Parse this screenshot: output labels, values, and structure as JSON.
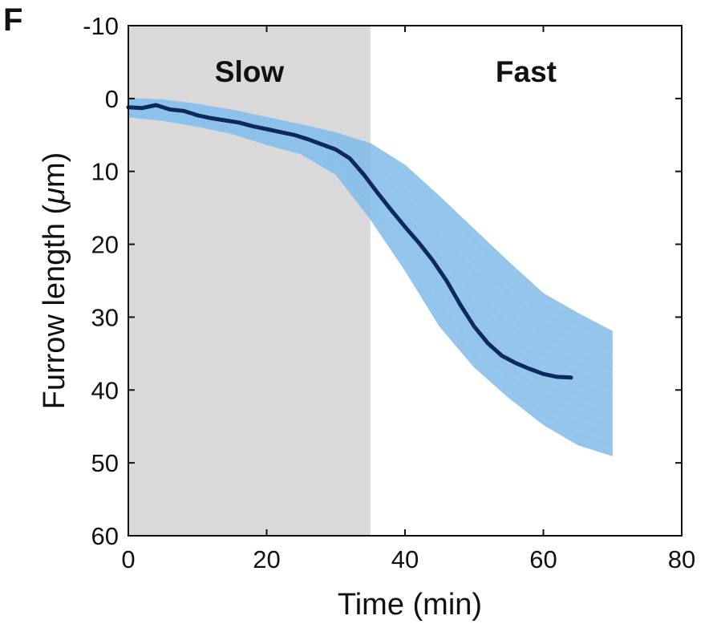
{
  "panel_letter": "F",
  "chart_data": {
    "type": "line",
    "title": "",
    "xlabel": "Time (min)",
    "ylabel_prefix": "Furrow length (",
    "ylabel_mu": "μ",
    "ylabel_suffix": "m)",
    "xlim": [
      0,
      80
    ],
    "ylim": [
      -10,
      60
    ],
    "y_inverted": true,
    "grid": false,
    "xticks": [
      0,
      20,
      40,
      60,
      80
    ],
    "xtick_labels": [
      "0",
      "20",
      "40",
      "60",
      "80"
    ],
    "yticks": [
      -10,
      0,
      10,
      20,
      30,
      40,
      50,
      60
    ],
    "ytick_labels": [
      "-10",
      "0",
      "10",
      "20",
      "30",
      "40",
      "50",
      "60"
    ],
    "regions": [
      {
        "label": "Slow",
        "x_start": 0,
        "x_end": 35,
        "color": "#d9d9d9"
      },
      {
        "label": "Fast",
        "x_start": 35,
        "x_end": 80,
        "color": "#ffffff"
      }
    ],
    "mean_series": {
      "color": "#0b2a5b",
      "x": [
        0,
        2,
        4,
        6,
        8,
        10,
        12,
        14,
        16,
        18,
        20,
        22,
        24,
        26,
        28,
        30,
        32,
        34,
        36,
        38,
        40,
        42,
        44,
        46,
        48,
        50,
        52,
        54,
        56,
        58,
        60,
        62,
        64
      ],
      "y": [
        1.2,
        1.3,
        0.9,
        1.5,
        1.7,
        2.3,
        2.7,
        3.0,
        3.3,
        3.8,
        4.2,
        4.6,
        5.0,
        5.6,
        6.3,
        7.0,
        8.2,
        10.4,
        12.9,
        15.3,
        17.6,
        19.8,
        22.2,
        25.0,
        28.3,
        31.3,
        33.6,
        35.3,
        36.3,
        37.1,
        37.8,
        38.2,
        38.3
      ]
    },
    "trace_band": {
      "color": "#7fb8e6",
      "x": [
        0,
        5,
        10,
        15,
        20,
        25,
        30,
        35,
        40,
        45,
        50,
        55,
        60,
        65,
        70
      ],
      "y_lower": [
        2.5,
        3.0,
        3.8,
        4.8,
        6.3,
        7.6,
        10.4,
        16.5,
        23.5,
        31.2,
        36.8,
        41.0,
        44.7,
        47.5,
        49.0
      ],
      "y_upper": [
        0.0,
        0.2,
        0.8,
        1.6,
        2.6,
        3.6,
        4.7,
        6.2,
        9.2,
        13.5,
        18.0,
        22.5,
        26.8,
        29.5,
        32.0
      ]
    }
  }
}
